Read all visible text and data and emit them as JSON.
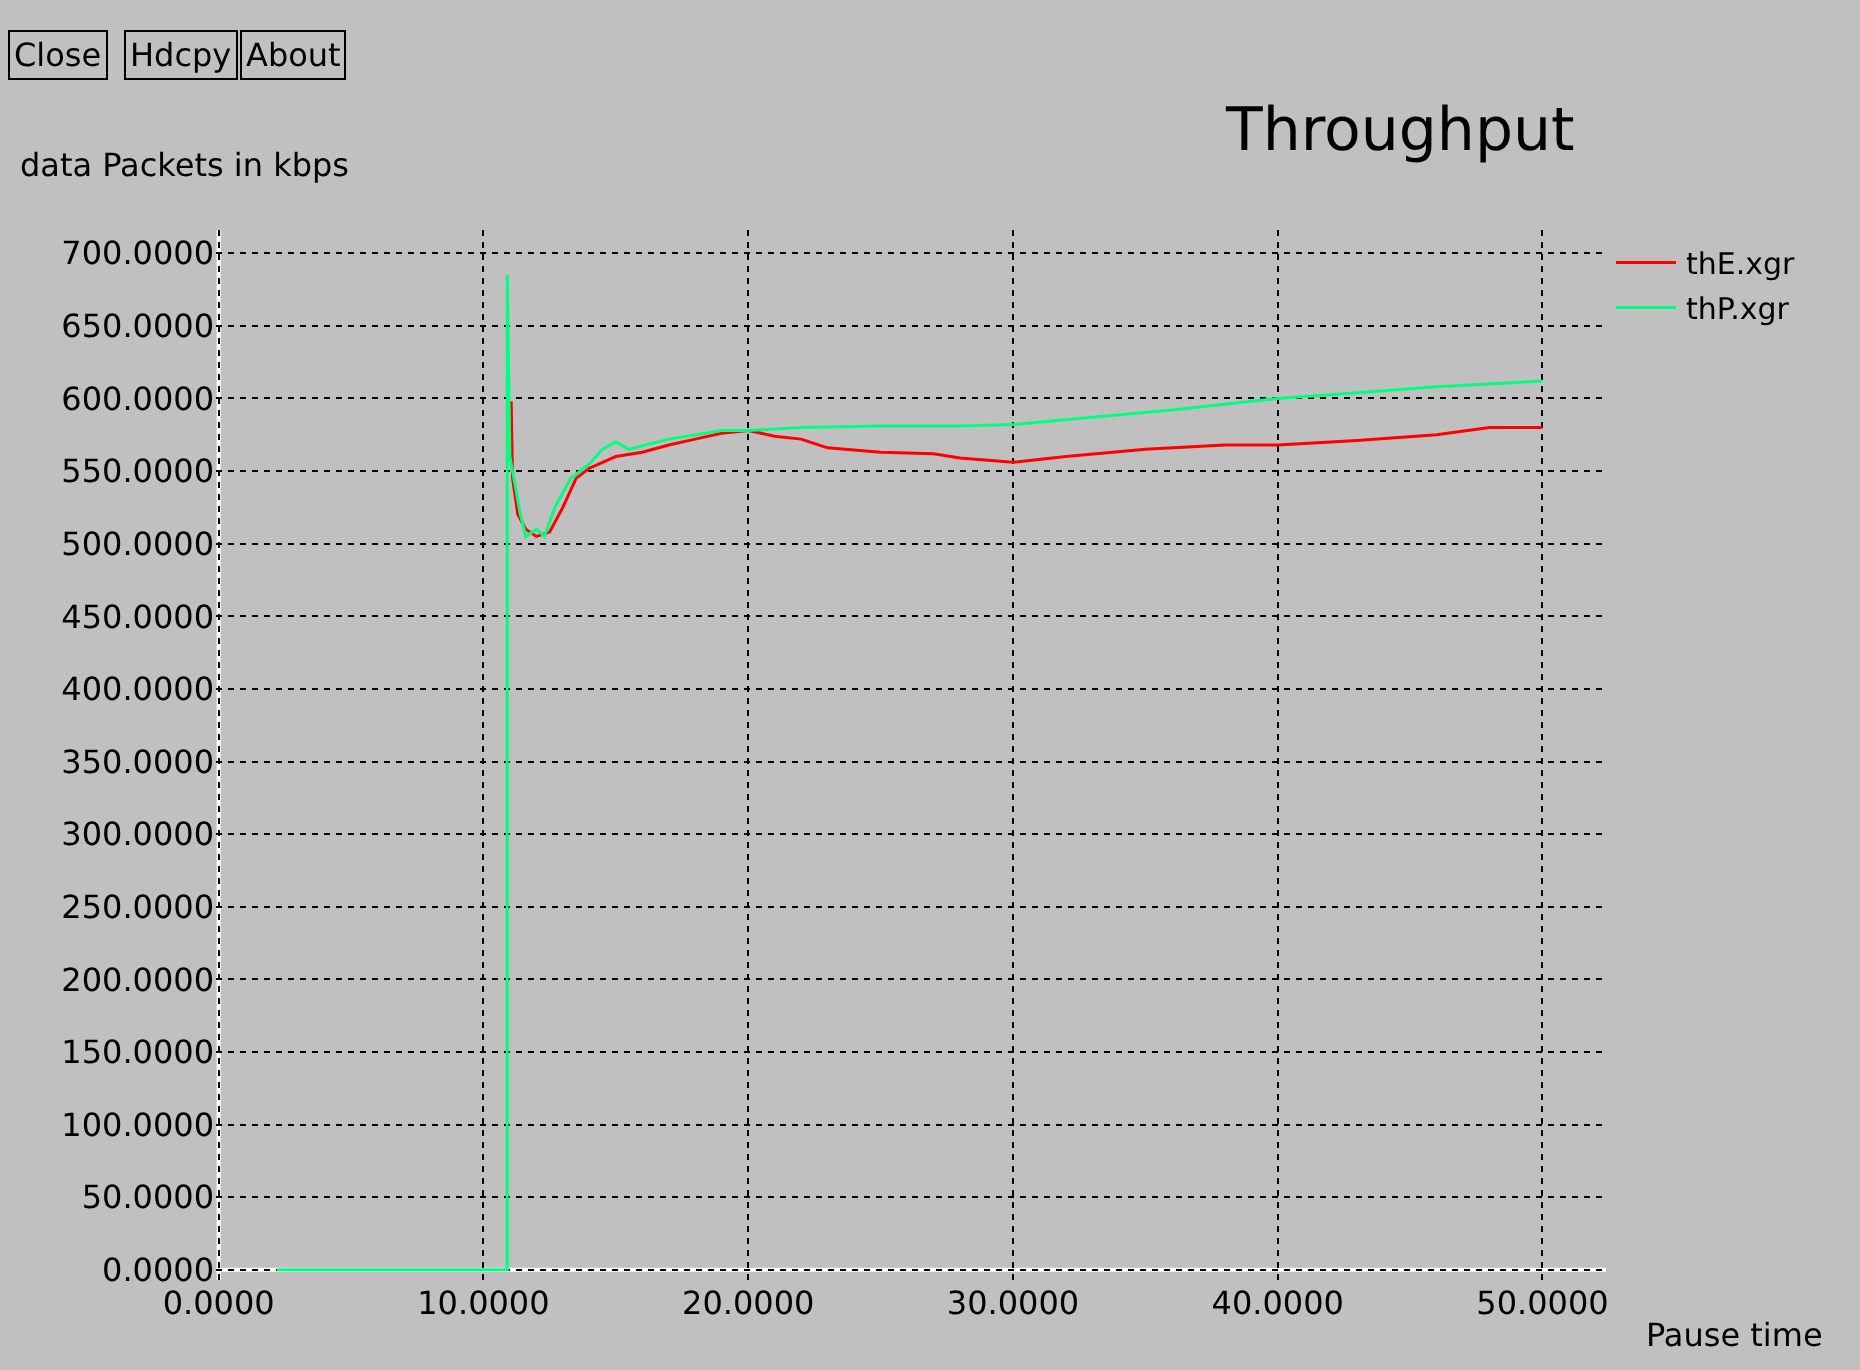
{
  "chart_data": {
    "type": "line",
    "title": "Throughput",
    "ylabel": "data Packets in kbps",
    "xlabel": "Pause time",
    "annotations": [
      "Close",
      "Hdcpy",
      "About"
    ],
    "xlim": [
      -0.1,
      52.4
    ],
    "ylim": [
      -7,
      716
    ],
    "xticks": [
      {
        "value": 0,
        "label": "0.0000"
      },
      {
        "value": 10,
        "label": "10.0000"
      },
      {
        "value": 20,
        "label": "20.0000"
      },
      {
        "value": 30,
        "label": "30.0000"
      },
      {
        "value": 40,
        "label": "40.0000"
      },
      {
        "value": 50,
        "label": "50.0000"
      }
    ],
    "yticks": [
      {
        "value": 0,
        "label": "0.0000"
      },
      {
        "value": 50,
        "label": "50.0000"
      },
      {
        "value": 100,
        "label": "100.0000"
      },
      {
        "value": 150,
        "label": "150.0000"
      },
      {
        "value": 200,
        "label": "200.0000"
      },
      {
        "value": 250,
        "label": "250.0000"
      },
      {
        "value": 300,
        "label": "300.0000"
      },
      {
        "value": 350,
        "label": "350.0000"
      },
      {
        "value": 400,
        "label": "400.0000"
      },
      {
        "value": 450,
        "label": "450.0000"
      },
      {
        "value": 500,
        "label": "500.0000"
      },
      {
        "value": 550,
        "label": "550.0000"
      },
      {
        "value": 600,
        "label": "600.0000"
      },
      {
        "value": 650,
        "label": "650.0000"
      },
      {
        "value": 700,
        "label": "700.0000"
      }
    ],
    "grid": true,
    "legend": "top right",
    "marker": "none",
    "line_style": "solid",
    "series": [
      {
        "name": "thE.xgr",
        "color": "#ff0000",
        "x": [
          11.05,
          11.1,
          11.3,
          11.6,
          12,
          12.5,
          13,
          13.5,
          14,
          15,
          16,
          17,
          18,
          19,
          20,
          21,
          22,
          23,
          25,
          27,
          28,
          30,
          32,
          35,
          38,
          40,
          43,
          46,
          48,
          50
        ],
        "values": [
          598,
          545,
          520,
          510,
          505,
          508,
          525,
          545,
          552,
          560,
          563,
          568,
          572,
          576,
          578,
          574,
          572,
          566,
          563,
          562,
          559,
          556,
          560,
          565,
          568,
          568,
          571,
          575,
          580,
          580
        ]
      },
      {
        "name": "thP.xgr",
        "color": "#00ff7f",
        "x": [
          2.2,
          10.9,
          10.9,
          11.0,
          11.2,
          11.4,
          11.6,
          12,
          12.3,
          12.7,
          13.3,
          14,
          14.5,
          15,
          15.5,
          17,
          19,
          20,
          22,
          25,
          28,
          30,
          33,
          36,
          40,
          43,
          46,
          50
        ],
        "values": [
          0,
          0,
          685,
          560,
          540,
          520,
          505,
          510,
          505,
          525,
          545,
          555,
          565,
          570,
          565,
          572,
          578,
          578,
          580,
          581,
          581,
          582,
          587,
          592,
          600,
          604,
          608,
          612
        ]
      }
    ]
  }
}
